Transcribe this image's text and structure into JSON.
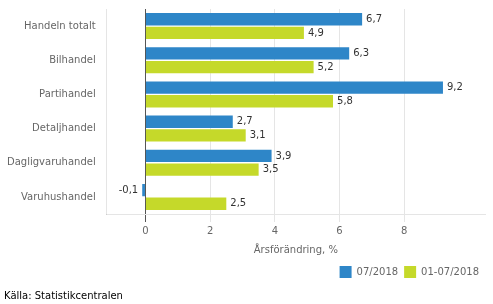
{
  "chart_data": {
    "type": "bar",
    "orientation": "horizontal",
    "categories": [
      "Handeln totalt",
      "Bilhandel",
      "Partihandel",
      "Detaljhandel",
      "Dagligvaruhandel",
      "Varuhushandel"
    ],
    "series": [
      {
        "name": "07/2018",
        "color": "#2E86C8",
        "values": [
          6.7,
          6.3,
          9.2,
          2.7,
          3.9,
          -0.1
        ],
        "value_labels": [
          "6,7",
          "6,3",
          "9,2",
          "2,7",
          "3,9",
          "-0,1"
        ]
      },
      {
        "name": "01-07/2018",
        "color": "#C5D92A",
        "values": [
          4.9,
          5.2,
          5.8,
          3.1,
          3.5,
          2.5
        ],
        "value_labels": [
          "4,9",
          "5,2",
          "5,8",
          "3,1",
          "3,5",
          "2,5"
        ]
      }
    ],
    "xlabel": "Årsförändring, %",
    "xlim": [
      -1.2,
      10.5
    ],
    "xticks": [
      0,
      2,
      4,
      6,
      8
    ],
    "grid": true,
    "legend": "lower right",
    "data_labels": true,
    "annotations": [
      "Källa: Statistikcentralen"
    ]
  }
}
